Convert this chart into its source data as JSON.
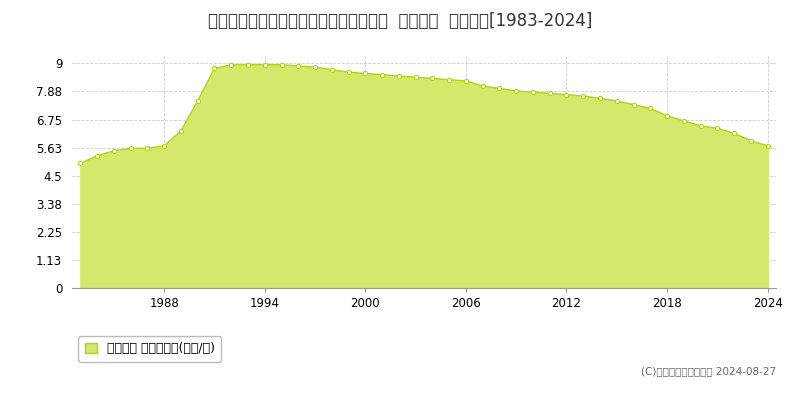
{
  "title": "栃木県足利市菅田町字東根８６９番１外  地価公示  地価推移[1983-2024]",
  "years": [
    1983,
    1984,
    1985,
    1986,
    1987,
    1988,
    1989,
    1990,
    1991,
    1992,
    1993,
    1994,
    1995,
    1996,
    1997,
    1998,
    1999,
    2000,
    2001,
    2002,
    2003,
    2004,
    2005,
    2006,
    2007,
    2008,
    2009,
    2010,
    2011,
    2012,
    2013,
    2014,
    2015,
    2016,
    2017,
    2018,
    2019,
    2020,
    2021,
    2022,
    2023,
    2024
  ],
  "values": [
    5.0,
    5.3,
    5.5,
    5.6,
    5.6,
    5.7,
    6.3,
    7.5,
    8.8,
    8.95,
    8.95,
    8.95,
    8.95,
    8.9,
    8.85,
    8.75,
    8.65,
    8.6,
    8.55,
    8.5,
    8.45,
    8.4,
    8.35,
    8.3,
    8.1,
    8.0,
    7.9,
    7.85,
    7.8,
    7.75,
    7.7,
    7.6,
    7.5,
    7.35,
    7.2,
    6.9,
    6.7,
    6.5,
    6.4,
    6.2,
    5.9,
    5.7
  ],
  "fill_color": "#d4e96b",
  "line_color": "#b8d400",
  "marker_color": "#ffffff",
  "marker_edge_color": "#b8d400",
  "yticks": [
    0,
    1.13,
    2.25,
    3.38,
    4.5,
    5.63,
    6.75,
    7.88,
    9
  ],
  "ytick_labels": [
    "0",
    "1.13",
    "2.25",
    "3.38",
    "4.5",
    "5.63",
    "6.75",
    "7.88",
    "9"
  ],
  "xticks": [
    1988,
    1994,
    2000,
    2006,
    2012,
    2018,
    2024
  ],
  "xlim": [
    1982.5,
    2024.5
  ],
  "ylim": [
    0,
    9.3
  ],
  "background_color": "#ffffff",
  "grid_color": "#cccccc",
  "copyright_text": "(C)土地価格ドットコム 2024-08-27",
  "legend_label": "地価公示 平均坤単価(万円/坤)",
  "title_fontsize": 12,
  "axis_fontsize": 8.5,
  "legend_fontsize": 9
}
